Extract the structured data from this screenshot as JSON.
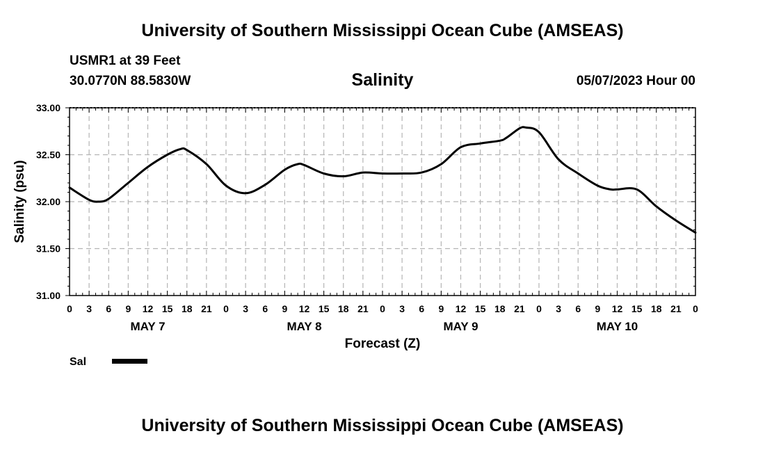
{
  "header": {
    "title": "University of Southern Mississippi Ocean Cube (AMSEAS)",
    "station": "USMR1 at 39 Feet",
    "coordinates": "30.0770N  88.5830W",
    "init_time": "05/07/2023 Hour 00"
  },
  "footer": {
    "title": "University of Southern Mississippi Ocean Cube (AMSEAS)"
  },
  "chart_data": {
    "type": "line",
    "title": "Salinity",
    "xlabel": "Forecast (Z)",
    "ylabel": "Salinity (psu)",
    "ylim": [
      31.0,
      33.0
    ],
    "xlim": [
      0,
      96
    ],
    "grid": true,
    "yticks": [
      "31.00",
      "31.50",
      "32.00",
      "32.50",
      "33.00"
    ],
    "xtick_labels": [
      "0",
      "3",
      "6",
      "9",
      "12",
      "15",
      "18",
      "21",
      "0",
      "3",
      "6",
      "9",
      "12",
      "15",
      "18",
      "21",
      "0",
      "3",
      "6",
      "9",
      "12",
      "15",
      "18",
      "21",
      "0",
      "3",
      "6",
      "9",
      "12",
      "15",
      "18",
      "21",
      "0"
    ],
    "day_labels": [
      {
        "label": "MAY 7",
        "hour": 12
      },
      {
        "label": "MAY 8",
        "hour": 36
      },
      {
        "label": "MAY 9",
        "hour": 60
      },
      {
        "label": "MAY 10",
        "hour": 84
      }
    ],
    "legend": {
      "label": "Sal",
      "position": "bottom-left"
    },
    "series": [
      {
        "name": "Sal",
        "x": [
          0,
          3,
          4.5,
          6,
          9,
          12,
          15,
          17,
          18,
          21,
          24,
          27,
          30,
          33,
          35,
          36,
          39,
          42,
          45,
          48,
          51,
          54,
          57,
          60,
          63,
          66,
          67,
          69,
          70,
          72,
          75,
          78,
          81,
          83,
          84,
          87,
          90,
          93,
          96
        ],
        "y": [
          32.15,
          32.02,
          32.0,
          32.03,
          32.2,
          32.37,
          32.5,
          32.56,
          32.55,
          32.4,
          32.17,
          32.09,
          32.18,
          32.34,
          32.4,
          32.39,
          32.3,
          32.27,
          32.31,
          32.3,
          32.3,
          32.31,
          32.4,
          32.58,
          32.62,
          32.65,
          32.68,
          32.78,
          32.79,
          32.74,
          32.45,
          32.3,
          32.17,
          32.13,
          32.13,
          32.13,
          31.95,
          31.8,
          31.67
        ]
      }
    ]
  }
}
